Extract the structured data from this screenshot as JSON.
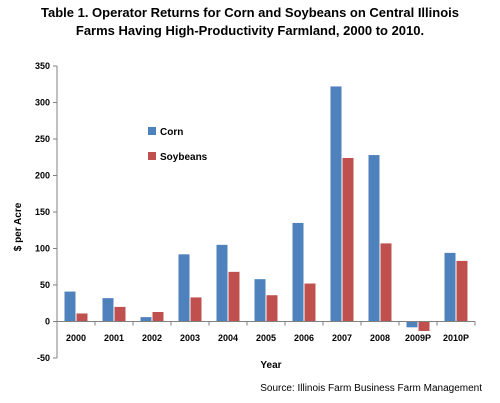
{
  "title_line1": "Table 1.  Operator Returns for Corn and Soybeans on Central Illinois",
  "title_line2": "Farms Having High-Productivity Farmland, 2000 to 2010.",
  "source": "Source:  Illinois Farm Business Farm Management",
  "colors": {
    "corn": "#4f81bd",
    "soybeans": "#c0504d"
  },
  "chart_data": {
    "type": "bar",
    "categories": [
      "2000",
      "2001",
      "2002",
      "2003",
      "2004",
      "2005",
      "2006",
      "2007",
      "2008",
      "2009P",
      "2010P"
    ],
    "series": [
      {
        "name": "Corn",
        "values": [
          41,
          32,
          6,
          92,
          105,
          58,
          135,
          322,
          228,
          -8,
          94
        ]
      },
      {
        "name": "Soybeans",
        "values": [
          11,
          20,
          13,
          33,
          68,
          36,
          52,
          224,
          107,
          -13,
          83
        ]
      }
    ],
    "xlabel": "Year",
    "ylabel": "$ per Acre",
    "ylim": [
      -50,
      350
    ],
    "yticks": [
      -50,
      0,
      50,
      100,
      150,
      200,
      250,
      300,
      350
    ],
    "grid": false,
    "legend": "upper-left inside plot"
  }
}
